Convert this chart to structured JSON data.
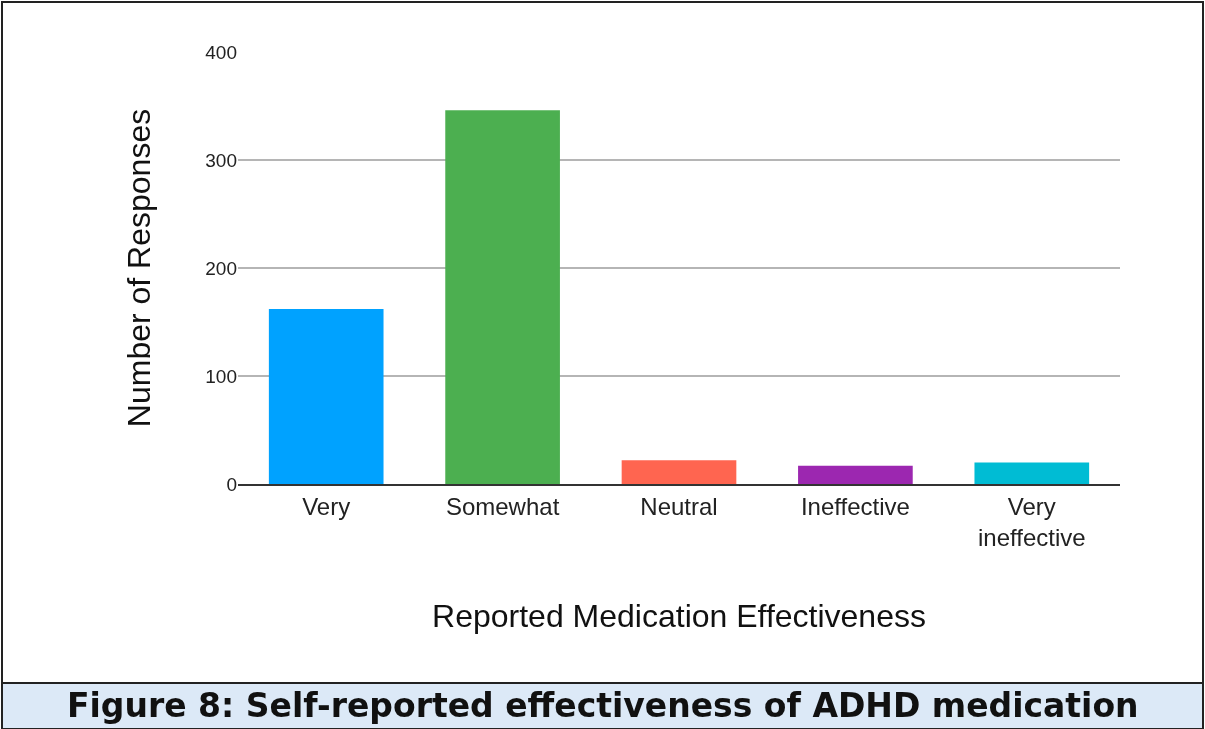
{
  "chart_data": {
    "type": "bar",
    "title": "Figure 8: Self-reported effectiveness of ADHD medication",
    "xlabel": "Reported Medication Effectiveness",
    "ylabel": "Number of Responses",
    "categories": [
      "Very",
      "Somewhat",
      "Neutral",
      "Ineffective",
      "Very ineffective"
    ],
    "values": [
      162,
      346,
      22,
      17,
      20
    ],
    "colors": [
      "#00a2ff",
      "#4caf50",
      "#ff6550",
      "#9c27b0",
      "#00bcd4"
    ],
    "ylim": [
      0,
      400
    ],
    "yticks": [
      0,
      100,
      200,
      300,
      400
    ],
    "grid": "y"
  }
}
